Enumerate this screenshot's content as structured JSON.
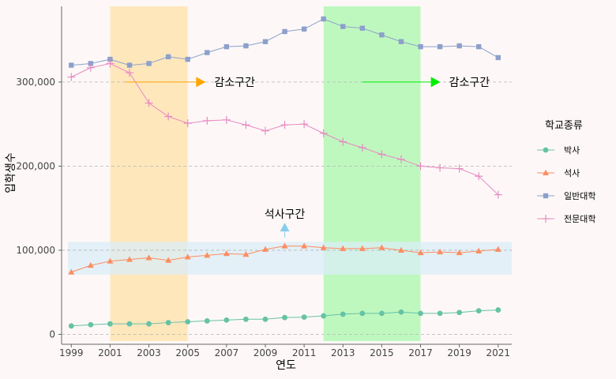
{
  "chart_data": {
    "type": "line",
    "xlabel": "연도",
    "ylabel": "입학생수",
    "x": [
      1999,
      2000,
      2001,
      2002,
      2003,
      2004,
      2005,
      2006,
      2007,
      2008,
      2009,
      2010,
      2011,
      2012,
      2013,
      2014,
      2015,
      2016,
      2017,
      2018,
      2019,
      2020,
      2021
    ],
    "x_ticks": [
      "1999",
      "2001",
      "2003",
      "2005",
      "2007",
      "2009",
      "2011",
      "2013",
      "2015",
      "2017",
      "2019",
      "2021"
    ],
    "y_ticks": [
      "0",
      "100,000",
      "200,000",
      "300,000"
    ],
    "xlim": [
      1998.5,
      2021.7
    ],
    "ylim": [
      -8000,
      390000
    ],
    "grid": "horizontal dashed",
    "legend_position": "right",
    "legend_title": "학교종류",
    "series": [
      {
        "name": "박사",
        "color": "#66c2a5",
        "marker": "circle",
        "values": [
          10000,
          11500,
          12500,
          12500,
          12500,
          14000,
          15000,
          16000,
          17000,
          18000,
          18000,
          20000,
          20500,
          22000,
          24000,
          25000,
          25000,
          26500,
          25000,
          25000,
          26000,
          28000,
          29000
        ]
      },
      {
        "name": "석사",
        "color": "#fc8d62",
        "marker": "triangle",
        "values": [
          74000,
          82000,
          87000,
          89000,
          91000,
          88000,
          92000,
          94000,
          96000,
          95000,
          101000,
          105000,
          105000,
          103000,
          102000,
          102000,
          103000,
          100000,
          97000,
          98000,
          97000,
          99000,
          101000
        ]
      },
      {
        "name": "일반대학",
        "color": "#8da0cb",
        "marker": "square",
        "values": [
          320000,
          322000,
          327000,
          320000,
          322000,
          330000,
          327000,
          335000,
          342000,
          343000,
          348000,
          360000,
          363000,
          375000,
          366000,
          364000,
          356000,
          348000,
          342000,
          342000,
          343000,
          342000,
          329000
        ]
      },
      {
        "name": "전문대학",
        "color": "#e78ac3",
        "marker": "cross",
        "values": [
          306000,
          317000,
          322000,
          311000,
          275000,
          259000,
          251000,
          254000,
          255000,
          249000,
          242000,
          249000,
          250000,
          239000,
          229000,
          222000,
          214000,
          208000,
          200000,
          198000,
          197000,
          188000,
          166000
        ]
      }
    ],
    "shaded_regions": [
      {
        "axis": "x",
        "from": 2001,
        "to": 2005,
        "color": "#ffe4b5"
      },
      {
        "axis": "x",
        "from": 2012,
        "to": 2017,
        "color": "#b8f7b8"
      },
      {
        "axis": "y",
        "from": 71000,
        "to": 110000,
        "color": "#daeef7"
      }
    ],
    "annotations": [
      {
        "text": "감소구간",
        "arrow_from": [
          2001.8,
          300000
        ],
        "arrow_to": [
          2005.8,
          300000
        ],
        "color": "#ffa500"
      },
      {
        "text": "감소구간",
        "arrow_from": [
          2014.0,
          300000
        ],
        "arrow_to": [
          2017.9,
          300000
        ],
        "color": "#00ee00"
      },
      {
        "text": "석사구간",
        "arrow_from": [
          2010.0,
          115000
        ],
        "arrow_to": [
          2010.0,
          128000
        ],
        "color": "#87ceeb"
      }
    ]
  }
}
